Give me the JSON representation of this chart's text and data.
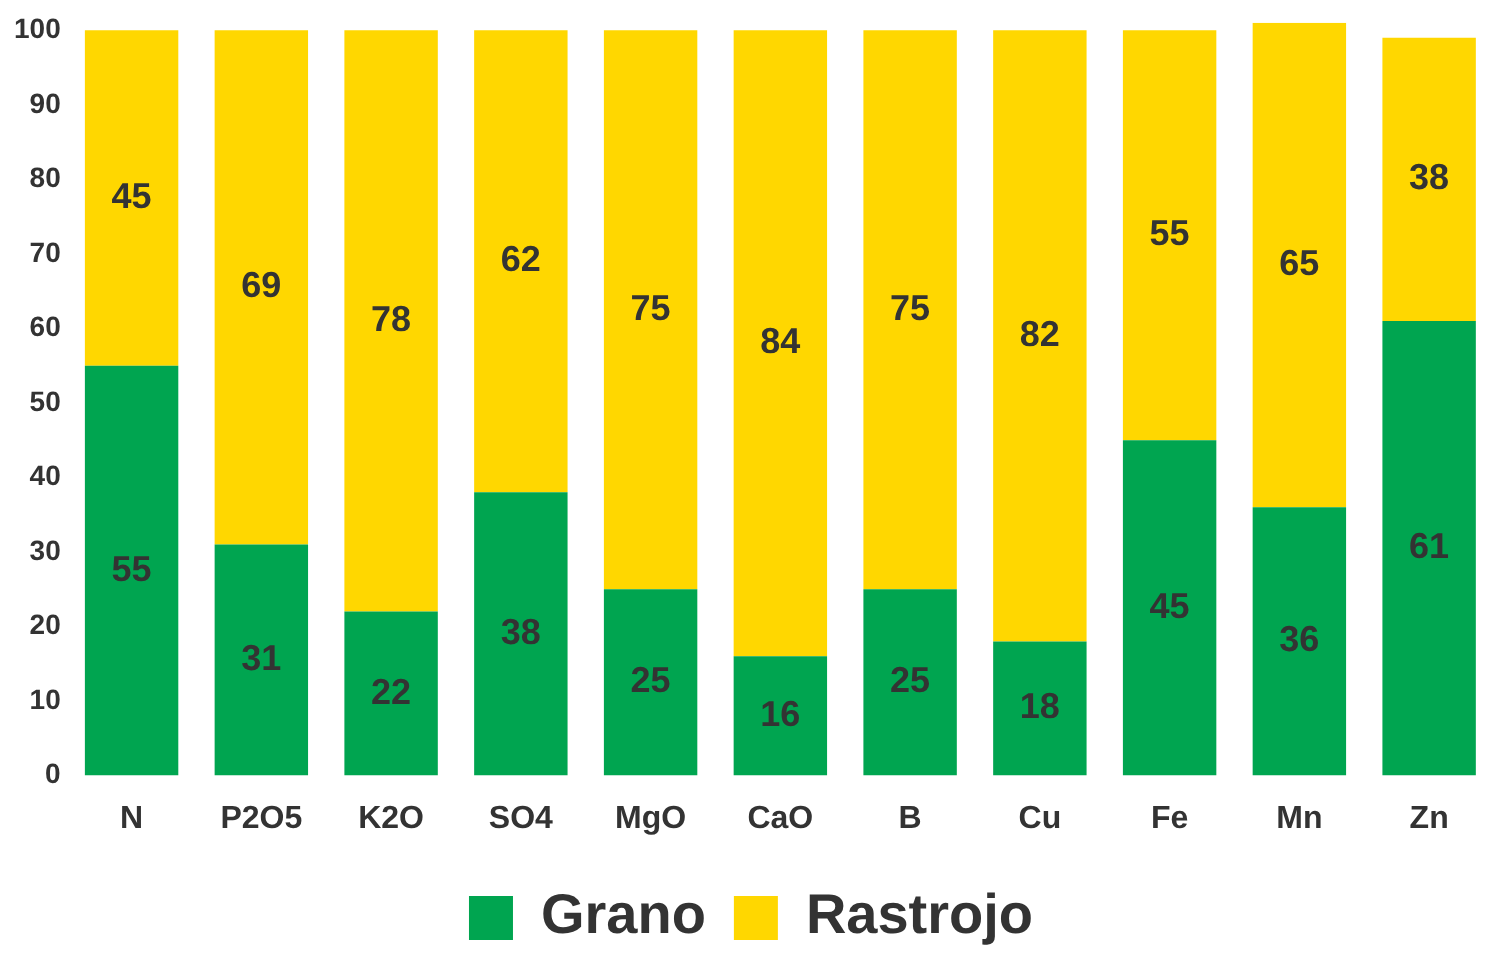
{
  "chart_data": {
    "type": "bar",
    "stacked": true,
    "categories": [
      "N",
      "P2O5",
      "K2O",
      "SO4",
      "MgO",
      "CaO",
      "B",
      "Cu",
      "Fe",
      "Mn",
      "Zn"
    ],
    "series": [
      {
        "name": "Grano",
        "color": "#00a550",
        "values": [
          55,
          31,
          22,
          38,
          25,
          16,
          25,
          18,
          45,
          36,
          61
        ]
      },
      {
        "name": "Rastrojo",
        "color": "#ffd700",
        "values": [
          45,
          69,
          78,
          62,
          75,
          84,
          75,
          82,
          55,
          65,
          38
        ]
      }
    ],
    "ylim": [
      0,
      101
    ],
    "yticks": [
      0,
      10,
      20,
      30,
      40,
      50,
      60,
      70,
      80,
      90,
      100
    ],
    "grid": false,
    "legend": "bottom",
    "data_labels": true
  }
}
